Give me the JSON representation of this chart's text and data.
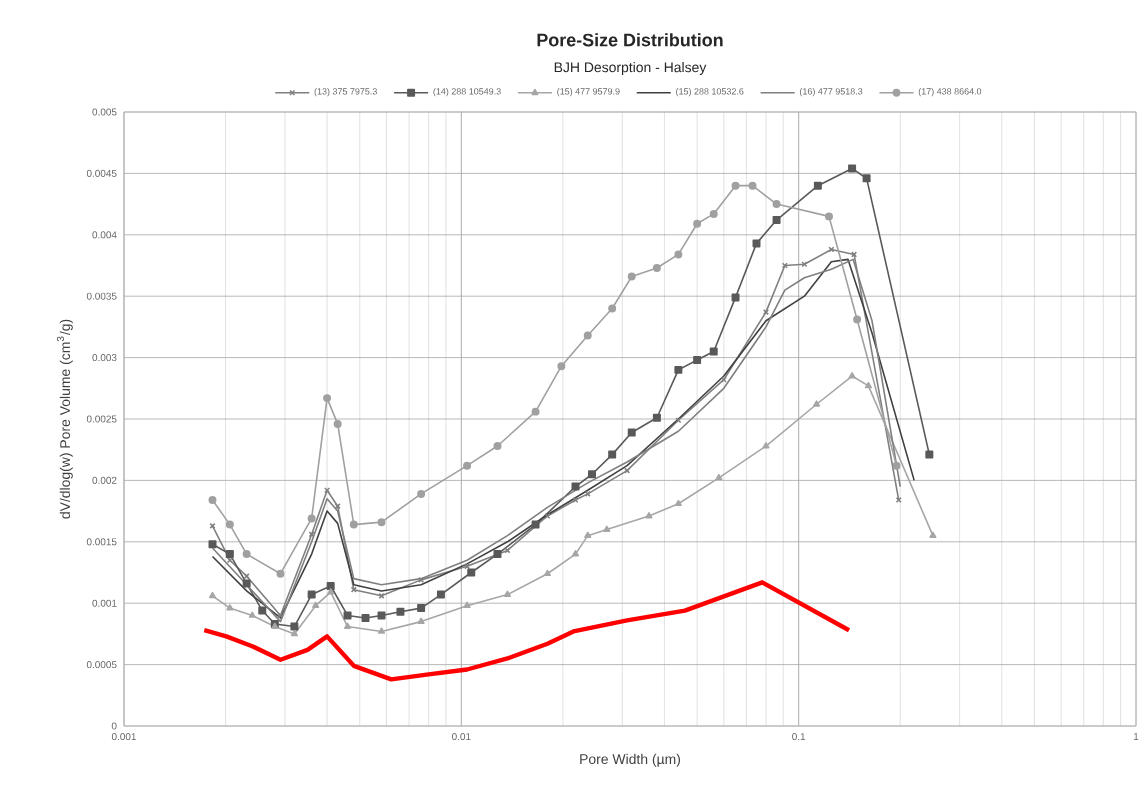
{
  "chart_data": {
    "type": "line",
    "title": "Pore-Size Distribution",
    "subtitle": "BJH Desorption - Halsey",
    "xlabel": "Pore Width (µm)",
    "ylabel": "dV/dlog(w) Pore Volume (cm$^{3}$/g)",
    "log": "x",
    "xlim": [
      0.001,
      1
    ],
    "xticks": [
      0.001,
      0.01,
      0.1,
      1
    ],
    "ylim": [
      0,
      0.005
    ],
    "yticks": [
      0,
      0.0005,
      0.001,
      0.0015,
      0.002,
      0.0025,
      0.003,
      0.0035,
      0.004,
      0.0045,
      0.005
    ],
    "grid": true,
    "legend": "top",
    "line_style": "solid",
    "series": [
      {
        "name": "(13) 375 7975.3",
        "color": "#808080",
        "marker": "cross",
        "x": [
          0.00183,
          0.00206,
          0.00231,
          0.00291,
          0.0036,
          0.004,
          0.0043,
          0.0048,
          0.0058,
          0.0076,
          0.0104,
          0.0137,
          0.018,
          0.0218,
          0.0237,
          0.031,
          0.044,
          0.06,
          0.08,
          0.091,
          0.104,
          0.125,
          0.146,
          0.198
        ],
        "values": [
          0.00163,
          0.00135,
          0.00122,
          0.0009,
          0.00156,
          0.00192,
          0.00179,
          0.00111,
          0.00106,
          0.00119,
          0.0013,
          0.00143,
          0.00171,
          0.00184,
          0.00189,
          0.00208,
          0.00249,
          0.00282,
          0.00337,
          0.00375,
          0.00376,
          0.00388,
          0.00384,
          0.00184
        ]
      },
      {
        "name": "(14) 288 10549.3",
        "color": "#595959",
        "marker": "square",
        "x": [
          0.00183,
          0.00206,
          0.00231,
          0.00257,
          0.0028,
          0.0032,
          0.0036,
          0.0041,
          0.0046,
          0.0052,
          0.0058,
          0.0066,
          0.0076,
          0.0087,
          0.0107,
          0.0128,
          0.0166,
          0.0218,
          0.0244,
          0.028,
          0.032,
          0.038,
          0.044,
          0.05,
          0.056,
          0.065,
          0.075,
          0.086,
          0.114,
          0.144,
          0.159,
          0.244
        ],
        "values": [
          0.00148,
          0.0014,
          0.00116,
          0.00094,
          0.00083,
          0.00081,
          0.00107,
          0.00114,
          0.0009,
          0.00088,
          0.0009,
          0.00093,
          0.00096,
          0.00107,
          0.00125,
          0.0014,
          0.00164,
          0.00195,
          0.00205,
          0.00221,
          0.00239,
          0.00251,
          0.0029,
          0.00298,
          0.00305,
          0.00349,
          0.00393,
          0.00412,
          0.0044,
          0.00454,
          0.00446,
          0.00221
        ]
      },
      {
        "name": "(15) 477 9579.9",
        "color": "#a6a6a6",
        "marker": "triangle",
        "x": [
          0.00183,
          0.00206,
          0.0024,
          0.0028,
          0.0032,
          0.0037,
          0.0041,
          0.0046,
          0.0058,
          0.0076,
          0.0104,
          0.0137,
          0.018,
          0.0218,
          0.0237,
          0.027,
          0.036,
          0.044,
          0.058,
          0.08,
          0.113,
          0.144,
          0.161,
          0.25
        ],
        "values": [
          0.00106,
          0.00096,
          0.0009,
          0.00081,
          0.00075,
          0.00098,
          0.00109,
          0.00081,
          0.00077,
          0.00085,
          0.00098,
          0.00107,
          0.00124,
          0.0014,
          0.00155,
          0.0016,
          0.00171,
          0.00181,
          0.00202,
          0.00228,
          0.00262,
          0.00285,
          0.00277,
          0.00155
        ]
      },
      {
        "name": "(15) 288 10532.6",
        "color": "#404040",
        "marker": "none",
        "x": [
          0.00183,
          0.00231,
          0.00291,
          0.0036,
          0.004,
          0.0043,
          0.0048,
          0.0058,
          0.0076,
          0.0104,
          0.0137,
          0.018,
          0.0237,
          0.031,
          0.044,
          0.06,
          0.08,
          0.104,
          0.125,
          0.14,
          0.165,
          0.22
        ],
        "values": [
          0.00138,
          0.0011,
          0.00088,
          0.0014,
          0.00175,
          0.00165,
          0.00115,
          0.0011,
          0.00115,
          0.00132,
          0.0015,
          0.00172,
          0.00192,
          0.00212,
          0.0025,
          0.00285,
          0.0033,
          0.0035,
          0.00378,
          0.0038,
          0.0032,
          0.002
        ]
      },
      {
        "name": "(16) 477 9518.3",
        "color": "#7f7f7f",
        "marker": "none",
        "x": [
          0.00183,
          0.00231,
          0.00291,
          0.0036,
          0.004,
          0.0043,
          0.0048,
          0.0058,
          0.0076,
          0.0104,
          0.0137,
          0.018,
          0.0237,
          0.031,
          0.044,
          0.06,
          0.08,
          0.091,
          0.104,
          0.125,
          0.145,
          0.165,
          0.2
        ],
        "values": [
          0.00145,
          0.00115,
          0.00085,
          0.0015,
          0.00185,
          0.00175,
          0.0012,
          0.00115,
          0.0012,
          0.00135,
          0.00155,
          0.00178,
          0.00198,
          0.00215,
          0.0024,
          0.00275,
          0.00325,
          0.00355,
          0.00365,
          0.00372,
          0.0038,
          0.0033,
          0.00195
        ]
      },
      {
        "name": "(17) 438 8664.0",
        "color": "#a0a0a0",
        "marker": "circle",
        "x": [
          0.00183,
          0.00206,
          0.00231,
          0.00291,
          0.0036,
          0.004,
          0.0043,
          0.0048,
          0.0058,
          0.0076,
          0.0104,
          0.0128,
          0.0166,
          0.0198,
          0.0237,
          0.028,
          0.032,
          0.038,
          0.044,
          0.05,
          0.056,
          0.065,
          0.073,
          0.086,
          0.123,
          0.149,
          0.195
        ],
        "values": [
          0.00184,
          0.00164,
          0.0014,
          0.00124,
          0.00169,
          0.00267,
          0.00246,
          0.00164,
          0.00166,
          0.00189,
          0.00212,
          0.00228,
          0.00256,
          0.00293,
          0.00318,
          0.0034,
          0.00366,
          0.00373,
          0.00384,
          0.00409,
          0.00417,
          0.0044,
          0.0044,
          0.00425,
          0.00415,
          0.00331,
          0.00212
        ]
      },
      {
        "color": "#ff0000",
        "marker": "none",
        "x": [
          0.00173,
          0.00201,
          0.0024,
          0.00291,
          0.0035,
          0.004,
          0.0048,
          0.0062,
          0.008,
          0.0104,
          0.0137,
          0.018,
          0.0215,
          0.031,
          0.046,
          0.078,
          0.141
        ],
        "values": [
          0.00078,
          0.00073,
          0.00065,
          0.00054,
          0.00062,
          0.00073,
          0.00049,
          0.00038,
          0.00042,
          0.00046,
          0.00055,
          0.00067,
          0.00077,
          0.00086,
          0.00094,
          0.00117,
          0.00078
        ]
      }
    ]
  }
}
